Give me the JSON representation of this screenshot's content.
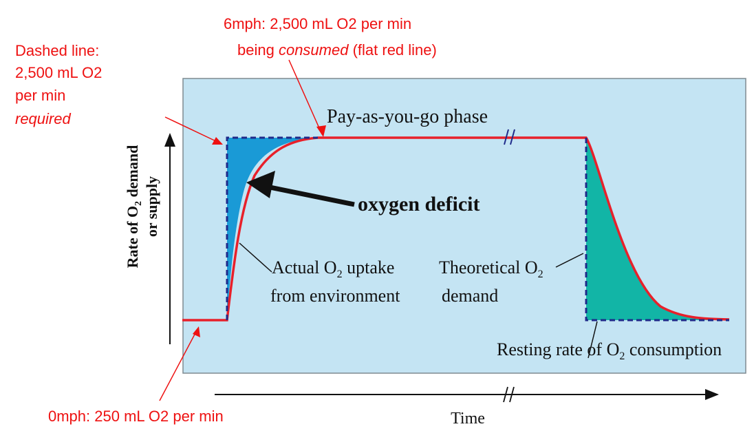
{
  "annotations": {
    "top_line1": "6mph: 2,500 mL O2 per min",
    "top_line2_pre": "being ",
    "top_line2_em": "consumed",
    "top_line2_post": " (flat red line)",
    "dashed_line1": "Dashed line:",
    "dashed_line2": "2,500 mL O2",
    "dashed_line3": "per min",
    "dashed_line4": "required",
    "bottom": "0mph: 250 mL O2 per min"
  },
  "diagram": {
    "phase_label": "Pay-as-you-go phase",
    "deficit_label": "oxygen deficit",
    "actual_line1_pre": "Actual O",
    "actual_line1_sub": "2",
    "actual_line1_post": " uptake",
    "actual_line2": "from environment",
    "theoretical_line1_pre": "Theoretical O",
    "theoretical_line1_sub": "2",
    "theoretical_line2": "demand",
    "resting_pre": "Resting rate of O",
    "resting_sub": "2",
    "resting_post": " consumption",
    "y_axis_line1_pre": "Rate of O",
    "y_axis_line1_sub": "2",
    "y_axis_line1_post": " demand",
    "y_axis_line2": "or supply",
    "x_axis_label": "Time"
  },
  "colors": {
    "annotation": "#ee1111",
    "panel_bg": "#c4e4f3",
    "deficit_fill": "#1a9ad6",
    "recovery_fill": "#12b5a6",
    "supply_curve": "#e8202a",
    "demand_dashed": "#1f2a8a",
    "text": "#111111"
  }
}
